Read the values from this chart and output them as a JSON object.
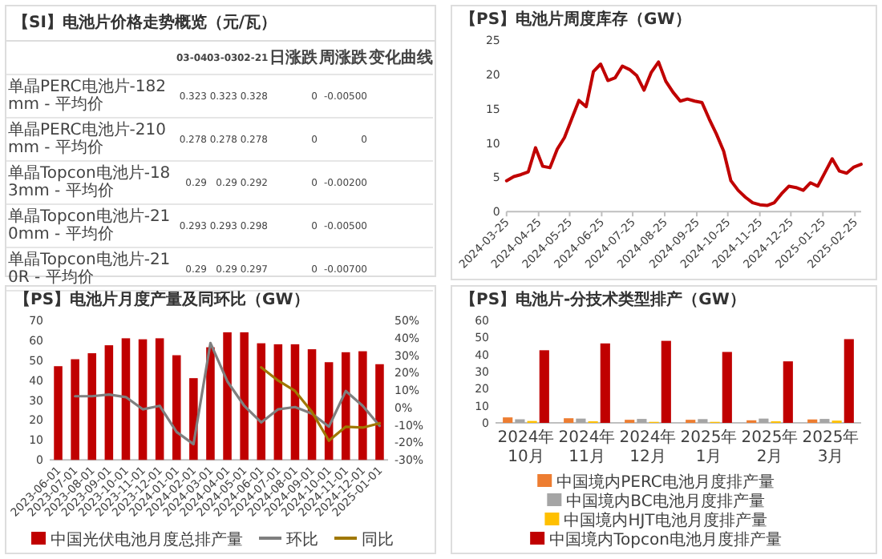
{
  "chart_data": [
    {
      "type": "other",
      "title": "【SI】电池片价格走势概览（元/瓦）",
      "categories": [
        "03-04",
        "03-03",
        "02-21",
        "日涨跌",
        "周涨跌",
        "变化曲线"
      ],
      "y_categories": [
        "单晶PERC电池片-182mm - 平均价",
        "单晶PERC电池片-210mm - 平均价",
        "单晶Topcon电池片-183mm - 平均价",
        "单晶Topcon电池片-210mm - 平均价",
        "单晶Topcon电池片-210R - 平均价"
      ],
      "cell_labels": [
        [
          "0.323",
          "0.323",
          "0.328",
          "0",
          "-0.00500",
          null
        ],
        [
          "0.278",
          "0.278",
          "0.278",
          "0",
          "0",
          null
        ],
        [
          "0.29",
          "0.29",
          "0.292",
          "0",
          "-0.00200",
          null
        ],
        [
          "0.293",
          "0.293",
          "0.298",
          "0",
          "-0.00500",
          null
        ],
        [
          "0.29",
          "0.29",
          "0.297",
          "0",
          "-0.00700",
          null
        ]
      ]
    },
    {
      "type": "line",
      "title": "【PS】电池片周度库存（GW）",
      "color": "#c00000",
      "x": [
        "2024-03-25",
        "2024-04-01",
        "2024-04-08",
        "2024-04-15",
        "2024-04-22",
        "2024-04-29",
        "2024-05-06",
        "2024-05-13",
        "2024-05-20",
        "2024-05-27",
        "2024-06-03",
        "2024-06-10",
        "2024-06-17",
        "2024-06-24",
        "2024-07-01",
        "2024-07-08",
        "2024-07-15",
        "2024-07-22",
        "2024-07-29",
        "2024-08-05",
        "2024-08-12",
        "2024-08-19",
        "2024-08-26",
        "2024-09-02",
        "2024-09-09",
        "2024-09-16",
        "2024-09-23",
        "2024-09-30",
        "2024-10-07",
        "2024-10-14",
        "2024-10-21",
        "2024-10-28",
        "2024-11-04",
        "2024-11-11",
        "2024-11-18",
        "2024-11-25",
        "2024-12-02",
        "2024-12-09",
        "2024-12-16",
        "2024-12-23",
        "2024-12-30",
        "2025-01-06",
        "2025-01-13",
        "2025-01-20",
        "2025-01-27",
        "2025-02-03",
        "2025-02-10",
        "2025-02-17",
        "2025-02-24",
        "2025-03-03"
      ],
      "values": [
        4.5,
        5.1,
        5.4,
        5.8,
        9.3,
        6.6,
        6.4,
        9.1,
        10.8,
        13.5,
        16.2,
        15.3,
        20.4,
        21.5,
        19.1,
        19.5,
        21.2,
        20.7,
        19.8,
        17.7,
        20.3,
        21.8,
        19.0,
        17.4,
        16.1,
        16.4,
        16.1,
        15.9,
        13.5,
        11.3,
        8.8,
        4.5,
        3.1,
        2.1,
        1.3,
        1.0,
        0.9,
        1.3,
        2.6,
        3.7,
        3.5,
        3.1,
        4.2,
        3.7,
        5.7,
        7.7,
        5.9,
        5.6,
        6.5,
        6.9
      ],
      "xlim": [
        "2024-03-25",
        "2025-03-03"
      ],
      "xticks": [
        "2024-03-25",
        "2024-04-25",
        "2024-05-25",
        "2024-06-25",
        "2024-07-25",
        "2024-08-25",
        "2024-09-25",
        "2024-10-25",
        "2024-11-25",
        "2024-12-25",
        "2025-01-25",
        "2025-02-25"
      ],
      "ylim": [
        0,
        25
      ],
      "yticks": [
        0,
        5,
        10,
        15,
        20,
        25
      ]
    },
    {
      "type": "bar",
      "title": "【PS】电池片月度产量及同环比（GW）",
      "categories": [
        "2023-06-01",
        "2023-07-01",
        "2023-08-01",
        "2023-09-01",
        "2023-10-01",
        "2023-11-01",
        "2023-12-01",
        "2024-01-01",
        "2024-02-01",
        "2024-03-01",
        "2024-04-01",
        "2024-05-01",
        "2024-06-01",
        "2024-07-01",
        "2024-08-01",
        "2024-09-01",
        "2024-10-01",
        "2024-11-01",
        "2024-12-01",
        "2025-01-01"
      ],
      "series": [
        {
          "name": "中国光伏电池月度总排产量",
          "color": "#c00000",
          "values": [
            47,
            50.5,
            53.5,
            57.5,
            61,
            60.5,
            61,
            52.5,
            41,
            56.5,
            64,
            64,
            58.5,
            58,
            58,
            55.5,
            49,
            54,
            54.5,
            48
          ]
        },
        {
          "name": "环比",
          "type": "line",
          "axis": "y2",
          "color": "#7f7f7f",
          "values": [
            null,
            6.5,
            6.5,
            7.5,
            6,
            -1,
            1,
            -14,
            -21,
            37,
            15,
            1,
            -8.5,
            -1,
            0.3,
            -3.5,
            -11,
            9.5,
            1,
            -10.5
          ]
        },
        {
          "name": "同比",
          "type": "line",
          "axis": "y2",
          "color": "#a07800",
          "values": [
            null,
            null,
            null,
            null,
            null,
            null,
            null,
            null,
            null,
            null,
            null,
            null,
            23,
            15.5,
            9.5,
            -2.5,
            -19,
            -11,
            -11.5,
            -9
          ]
        }
      ],
      "ylim": [
        0,
        70
      ],
      "yticks": [
        0,
        10,
        20,
        30,
        40,
        50,
        60,
        70
      ],
      "y2lim": [
        -30,
        50
      ],
      "y2ticks": [
        {
          "value": -30,
          "label": "-30%"
        },
        {
          "value": -20,
          "label": "-20%"
        },
        {
          "value": -10,
          "label": "-10%"
        },
        {
          "value": 0,
          "label": "0%"
        },
        {
          "value": 10,
          "label": "10%"
        },
        {
          "value": 20,
          "label": "20%"
        },
        {
          "value": 30,
          "label": "30%"
        },
        {
          "value": 40,
          "label": "40%"
        },
        {
          "value": 50,
          "label": "50%"
        }
      ],
      "legend": "bottom"
    },
    {
      "type": "bar",
      "title": "【PS】电池片-分技术类型排产（GW）",
      "categories": [
        "2024年10月",
        "2024年11月",
        "2024年12月",
        "2025年1月",
        "2025年2月",
        "2025年3月"
      ],
      "series": [
        {
          "name": "中国境内PERC电池月度排产量",
          "color": "#ed7d31",
          "values": [
            3.2,
            2.7,
            1.8,
            1.8,
            1.5,
            2.0
          ]
        },
        {
          "name": "中国境内BC电池月度排产量",
          "color": "#a5a5a5",
          "values": [
            2.1,
            2.5,
            2.3,
            2.2,
            2.5,
            2.3
          ]
        },
        {
          "name": "中国境内HJT电池月度排产量",
          "color": "#ffc000",
          "values": [
            1.1,
            0.9,
            0.6,
            0.6,
            0.9,
            1.3
          ]
        },
        {
          "name": "中国境内Topcon电池月度排产量",
          "color": "#c00000",
          "values": [
            42.5,
            46.5,
            48,
            41.5,
            36,
            49
          ]
        }
      ],
      "ylim": [
        0,
        60
      ],
      "yticks": [
        0,
        10,
        20,
        30,
        40,
        50,
        60
      ],
      "legend": "bottom"
    }
  ]
}
